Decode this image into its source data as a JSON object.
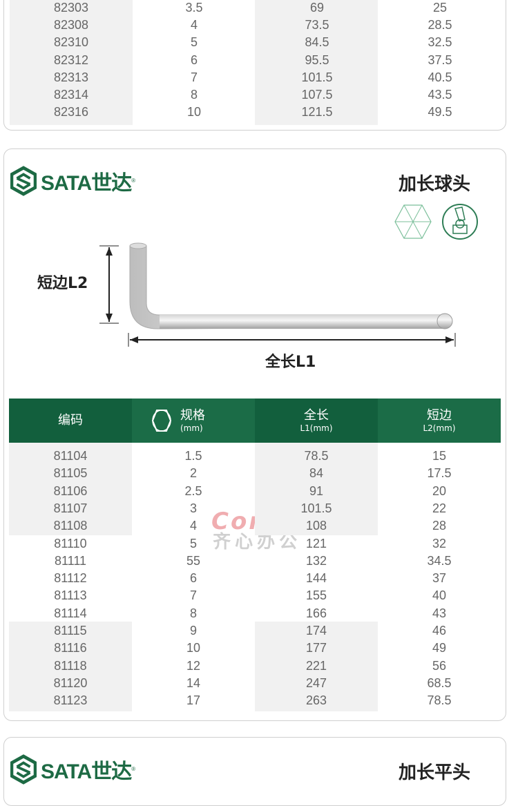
{
  "brand": {
    "logo_text": "SATA世达",
    "registered": "®",
    "color": "#1d6a44"
  },
  "top_table": {
    "rows": [
      [
        "82303",
        "3.5",
        "69",
        "25"
      ],
      [
        "82308",
        "4",
        "73.5",
        "28.5"
      ],
      [
        "82310",
        "5",
        "84.5",
        "32.5"
      ],
      [
        "82312",
        "6",
        "95.5",
        "37.5"
      ],
      [
        "82313",
        "7",
        "101.5",
        "40.5"
      ],
      [
        "82314",
        "8",
        "107.5",
        "43.5"
      ],
      [
        "82316",
        "10",
        "121.5",
        "49.5"
      ]
    ]
  },
  "ball_card": {
    "title": "加长球头",
    "icons": [
      "hex-icon",
      "ball-end-icon"
    ],
    "short_side_label": "短边L2",
    "full_length_label": "全长L1",
    "watermark": {
      "line1": "Comix",
      "line2": "齐心办公"
    },
    "header": [
      {
        "title": "编码",
        "unit": ""
      },
      {
        "title": "规格",
        "unit": "(mm)"
      },
      {
        "title": "全长",
        "unit": "L1(mm)"
      },
      {
        "title": "短边",
        "unit": "L2(mm)"
      }
    ],
    "header_color": "#1b6c47",
    "rows": [
      [
        "81104",
        "1.5",
        "78.5",
        "15"
      ],
      [
        "81105",
        "2",
        "84",
        "17.5"
      ],
      [
        "81106",
        "2.5",
        "91",
        "20"
      ],
      [
        "81107",
        "3",
        "101.5",
        "22"
      ],
      [
        "81108",
        "4",
        "108",
        "28"
      ],
      [
        "81110",
        "5",
        "121",
        "32"
      ],
      [
        "81111",
        "55",
        "132",
        "34.5"
      ],
      [
        "81112",
        "6",
        "144",
        "37"
      ],
      [
        "81113",
        "7",
        "155",
        "40"
      ],
      [
        "81114",
        "8",
        "166",
        "43"
      ],
      [
        "81115",
        "9",
        "174",
        "46"
      ],
      [
        "81116",
        "10",
        "177",
        "49"
      ],
      [
        "81118",
        "12",
        "221",
        "56"
      ],
      [
        "81120",
        "14",
        "247",
        "68.5"
      ],
      [
        "81123",
        "17",
        "263",
        "78.5"
      ]
    ]
  },
  "flat_card": {
    "title": "加长平头"
  }
}
